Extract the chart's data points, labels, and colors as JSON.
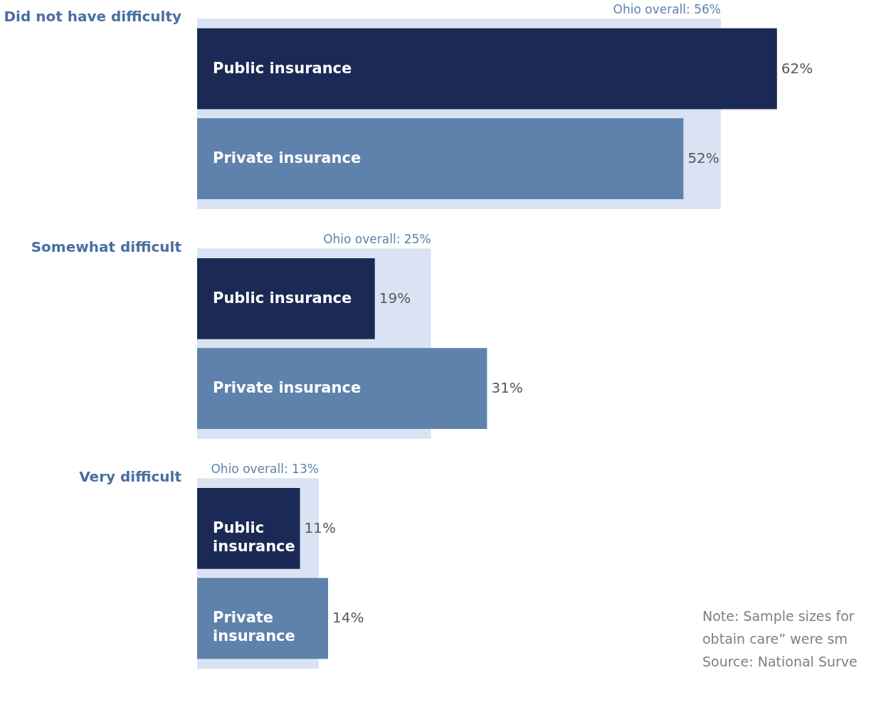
{
  "chart_data": {
    "type": "bar",
    "orientation": "horizontal",
    "legend": false,
    "categories": [
      "Did not have difficulty",
      "Somewhat difficult",
      "Very difficult"
    ],
    "series": [
      {
        "name": "Ohio overall:",
        "color": "#dae3f3",
        "values": [
          56,
          25,
          13
        ],
        "value_labels": [
          "56%",
          "25%",
          "13%"
        ]
      },
      {
        "name": "Public insurance",
        "color": "#1b2a55",
        "values": [
          62,
          19,
          11
        ],
        "value_labels": [
          "62%",
          "19%",
          "11%"
        ]
      },
      {
        "name": "Private insurance",
        "color": "#5f82ac",
        "values": [
          52,
          31,
          14
        ],
        "value_labels": [
          "52%",
          "31%",
          "14%"
        ]
      }
    ],
    "annotations": [
      "Note: Sample sizes for",
      "obtain care” were sm",
      "Source: National Surve"
    ]
  }
}
